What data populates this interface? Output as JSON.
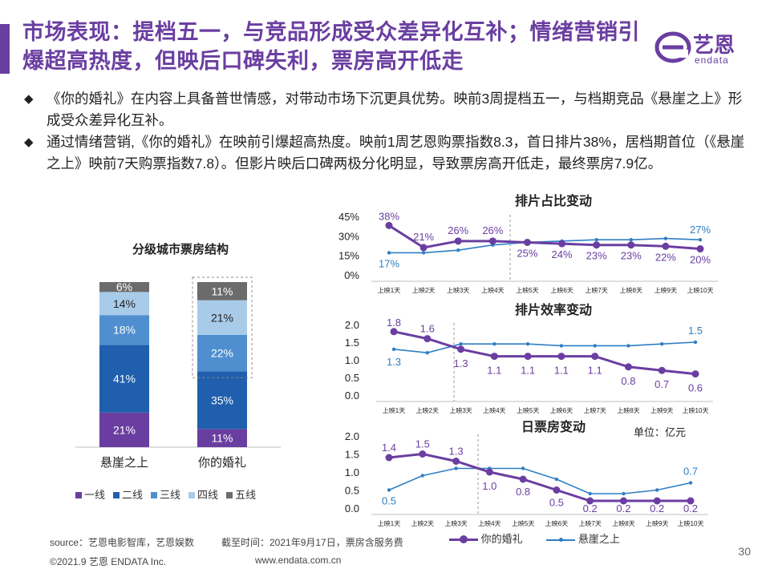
{
  "title": "市场表现：提档五一，与竞品形成受众差异化互补；情绪营销引爆超高热度，但映后口碑失利，票房高开低走",
  "logo": {
    "name": "艺恩",
    "sub": "endata"
  },
  "bullets": [
    "《你的婚礼》在内容上具备普世情感，对带动市场下沉更具优势。映前3周提档五一，与档期竞品《悬崖之上》形成受众差异化互补。",
    "通过情绪营销,《你的婚礼》在映前引爆超高热度。映前1周艺恩购票指数8.3，首日排片38%，居档期首位（《悬崖之上》映前7天购票指数7.8）。但影片映后口碑两极分化明显，导致票房高开低走，最终票房7.9亿。"
  ],
  "colors": {
    "purple": "#6a3ea1",
    "navy": "#1f5fad",
    "mid_blue": "#4f8fcf",
    "light_blue": "#a9cbea",
    "gray": "#6b6b6b",
    "line_blue": "#2f7ec4",
    "line_purple": "#6a3ea1"
  },
  "chart_data": [
    {
      "type": "bar",
      "stacked": true,
      "title": "分级城市票房结构",
      "categories": [
        "悬崖之上",
        "你的婚礼"
      ],
      "series": [
        {
          "name": "一线",
          "values": [
            21,
            11
          ]
        },
        {
          "name": "二线",
          "values": [
            41,
            35
          ]
        },
        {
          "name": "三线",
          "values": [
            18,
            22
          ]
        },
        {
          "name": "四线",
          "values": [
            14,
            21
          ]
        },
        {
          "name": "五线",
          "values": [
            6,
            11
          ]
        }
      ],
      "labels": [
        [
          "21%",
          "41%",
          "18%",
          "14%",
          "6%"
        ],
        [
          "11%",
          "35%",
          "22%",
          "21%",
          "11%"
        ]
      ]
    },
    {
      "type": "line",
      "title": "排片占比变动",
      "categories": [
        "上映1天",
        "上映2天",
        "上映3天",
        "上映4天",
        "上映5天",
        "上映6天",
        "上映7天",
        "上映8天",
        "上映9天",
        "上映10天"
      ],
      "yticks": [
        "45%",
        "30%",
        "15%",
        "0%"
      ],
      "ylim": [
        0,
        45
      ],
      "series": [
        {
          "name": "你的婚礼",
          "values": [
            38,
            21,
            26,
            26,
            25,
            24,
            23,
            23,
            22,
            20
          ],
          "labels": [
            "38%",
            "21%",
            "26%",
            "26%",
            "25%",
            "24%",
            "23%",
            "23%",
            "22%",
            "20%"
          ]
        },
        {
          "name": "悬崖之上",
          "values": [
            17,
            17,
            19,
            23,
            25,
            26,
            27,
            27,
            28,
            27
          ],
          "labels": [
            "17%",
            "",
            "",
            "",
            "",
            "",
            "",
            "",
            "",
            "27%"
          ]
        }
      ]
    },
    {
      "type": "line",
      "title": "排片效率变动",
      "categories": [
        "上映1天",
        "上映2天",
        "上映3天",
        "上映4天",
        "上映5天",
        "上映6天",
        "上映7天",
        "上映8天",
        "上映9天",
        "上映10天"
      ],
      "yticks": [
        "2.0",
        "1.5",
        "1.0",
        "0.5",
        "0.0"
      ],
      "ylim": [
        0,
        2
      ],
      "series": [
        {
          "name": "你的婚礼",
          "values": [
            1.8,
            1.6,
            1.3,
            1.1,
            1.1,
            1.1,
            1.1,
            0.8,
            0.7,
            0.6
          ],
          "labels": [
            "1.8",
            "1.6",
            "1.3",
            "1.1",
            "1.1",
            "1.1",
            "1.1",
            "0.8",
            "0.7",
            "0.6"
          ]
        },
        {
          "name": "悬崖之上",
          "values": [
            1.3,
            1.2,
            1.45,
            1.45,
            1.45,
            1.4,
            1.4,
            1.4,
            1.45,
            1.5
          ],
          "labels": [
            "1.3",
            "",
            "",
            "",
            "",
            "",
            "",
            "",
            "",
            "1.5"
          ]
        }
      ]
    },
    {
      "type": "line",
      "title": "日票房变动",
      "unit": "单位：亿元",
      "categories": [
        "上映1天",
        "上映2天",
        "上映3天",
        "上映4天",
        "上映5天",
        "上映6天",
        "上映7天",
        "上映8天",
        "上映9天",
        "上映10天"
      ],
      "yticks": [
        "2.0",
        "1.5",
        "1.0",
        "0.5",
        "0.0"
      ],
      "ylim": [
        0,
        2
      ],
      "series": [
        {
          "name": "你的婚礼",
          "values": [
            1.4,
            1.5,
            1.3,
            1.0,
            0.8,
            0.5,
            0.2,
            0.2,
            0.2,
            0.2
          ],
          "labels": [
            "1.4",
            "1.5",
            "1.3",
            "1.0",
            "0.8",
            "0.5",
            "0.2",
            "0.2",
            "0.2",
            "0.2"
          ]
        },
        {
          "name": "悬崖之上",
          "values": [
            0.5,
            0.9,
            1.1,
            1.1,
            1.1,
            0.8,
            0.4,
            0.4,
            0.5,
            0.7
          ],
          "labels": [
            "0.5",
            "",
            "",
            "",
            "",
            "",
            "",
            "",
            "",
            "0.7"
          ]
        }
      ]
    }
  ],
  "line_legend": [
    "你的婚礼",
    "悬崖之上"
  ],
  "footer": {
    "source": "source：艺恩电影智库，艺恩娱数",
    "cutoff": "截至时间：2021年9月17日，票房含服务费",
    "copyright": "©2021.9 艺恩 ENDATA Inc.",
    "website": "www.endata.com.cn",
    "page": "30"
  }
}
